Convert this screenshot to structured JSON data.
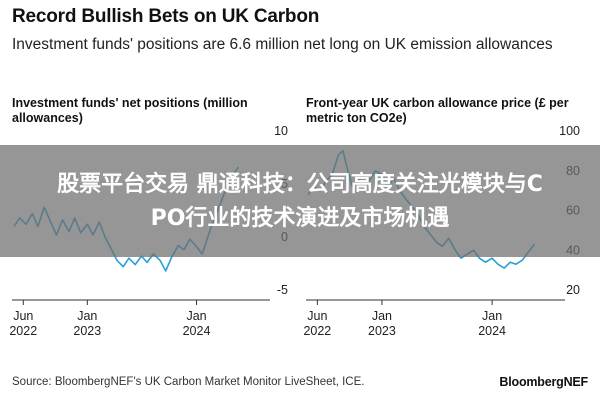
{
  "header": {
    "title": "Record Bullish Bets on UK Carbon",
    "subtitle": "Investment funds' positions are 6.6 million net long on UK emission allowances"
  },
  "footer": {
    "source": "Source: BloombergNEF's UK Carbon Market Monitor LiveSheet, ICE.",
    "brand": "BloombergNEF"
  },
  "overlay": {
    "line1": "股票平台交易 鼎通科技：公司高度关注光模块与C",
    "line2": "PO行业的技术演进及市场机遇"
  },
  "colors": {
    "line": "#2a9fd6",
    "baseline": "#333333",
    "overlay": "#6e6e6e"
  },
  "chart_data": [
    {
      "type": "line",
      "title": "Investment funds' net positions (million allowances)",
      "xlabel": "",
      "ylabel": "",
      "x_ticks": [
        {
          "label": [
            "Jun",
            "2022"
          ],
          "date": "2022-06"
        },
        {
          "label": [
            "Jan",
            "2023"
          ],
          "date": "2023-01"
        },
        {
          "label": [
            "Jan",
            "2024"
          ],
          "date": "2024-01"
        }
      ],
      "y_ticks": [
        10,
        5,
        0,
        -5
      ],
      "ylim": [
        -5,
        10
      ],
      "xlim": [
        "2022-05",
        "2024-06"
      ],
      "series": [
        {
          "values": [
            [
              "2022-05-01",
              1.0
            ],
            [
              "2022-05-20",
              1.8
            ],
            [
              "2022-06-10",
              1.2
            ],
            [
              "2022-07-01",
              2.2
            ],
            [
              "2022-07-20",
              1.0
            ],
            [
              "2022-08-10",
              2.8
            ],
            [
              "2022-08-30",
              1.5
            ],
            [
              "2022-09-20",
              0.2
            ],
            [
              "2022-10-10",
              1.6
            ],
            [
              "2022-11-01",
              0.5
            ],
            [
              "2022-11-20",
              1.8
            ],
            [
              "2022-12-10",
              0.4
            ],
            [
              "2023-01-01",
              1.2
            ],
            [
              "2023-01-20",
              0.2
            ],
            [
              "2023-02-10",
              1.4
            ],
            [
              "2023-03-01",
              0.0
            ],
            [
              "2023-03-20",
              -1.0
            ],
            [
              "2023-04-10",
              -2.2
            ],
            [
              "2023-05-01",
              -2.8
            ],
            [
              "2023-05-20",
              -2.0
            ],
            [
              "2023-06-10",
              -2.6
            ],
            [
              "2023-07-01",
              -1.8
            ],
            [
              "2023-07-20",
              -2.4
            ],
            [
              "2023-08-10",
              -1.6
            ],
            [
              "2023-09-01",
              -2.2
            ],
            [
              "2023-09-20",
              -3.2
            ],
            [
              "2023-10-10",
              -1.9
            ],
            [
              "2023-11-01",
              -0.8
            ],
            [
              "2023-11-20",
              -1.2
            ],
            [
              "2023-12-10",
              -0.2
            ],
            [
              "2024-01-01",
              -0.9
            ],
            [
              "2024-01-20",
              -1.6
            ],
            [
              "2024-02-10",
              0.2
            ],
            [
              "2024-03-01",
              1.8
            ],
            [
              "2024-03-20",
              3.1
            ],
            [
              "2024-04-10",
              4.6
            ],
            [
              "2024-05-01",
              5.8
            ],
            [
              "2024-05-20",
              6.6
            ]
          ]
        }
      ]
    },
    {
      "type": "line",
      "title": "Front-year UK carbon allowance price (£ per metric ton CO2e)",
      "xlabel": "",
      "ylabel": "",
      "x_ticks": [
        {
          "label": [
            "Jun",
            "2022"
          ],
          "date": "2022-06"
        },
        {
          "label": [
            "Jan",
            "2023"
          ],
          "date": "2023-01"
        },
        {
          "label": [
            "Jan",
            "2024"
          ],
          "date": "2024-01"
        }
      ],
      "y_ticks": [
        100,
        80,
        60,
        40,
        20
      ],
      "ylim": [
        20,
        100
      ],
      "xlim": [
        "2022-05",
        "2024-06"
      ],
      "series": [
        {
          "values": [
            [
              "2022-05-01",
              68
            ],
            [
              "2022-05-20",
              72
            ],
            [
              "2022-06-10",
              70
            ],
            [
              "2022-07-01",
              75
            ],
            [
              "2022-07-20",
              78
            ],
            [
              "2022-08-10",
              88
            ],
            [
              "2022-08-25",
              90
            ],
            [
              "2022-09-10",
              80
            ],
            [
              "2022-09-25",
              72
            ],
            [
              "2022-10-10",
              74
            ],
            [
              "2022-11-01",
              78
            ],
            [
              "2022-11-20",
              75
            ],
            [
              "2022-12-10",
              80
            ],
            [
              "2023-01-01",
              78
            ],
            [
              "2023-01-20",
              72
            ],
            [
              "2023-02-10",
              76
            ],
            [
              "2023-03-01",
              70
            ],
            [
              "2023-03-20",
              66
            ],
            [
              "2023-04-10",
              62
            ],
            [
              "2023-05-01",
              58
            ],
            [
              "2023-05-20",
              52
            ],
            [
              "2023-06-10",
              48
            ],
            [
              "2023-07-01",
              44
            ],
            [
              "2023-07-20",
              42
            ],
            [
              "2023-08-10",
              46
            ],
            [
              "2023-09-01",
              40
            ],
            [
              "2023-09-20",
              36
            ],
            [
              "2023-10-10",
              38
            ],
            [
              "2023-11-01",
              40
            ],
            [
              "2023-11-20",
              36
            ],
            [
              "2023-12-10",
              34
            ],
            [
              "2024-01-01",
              36
            ],
            [
              "2024-01-20",
              33
            ],
            [
              "2024-02-10",
              31
            ],
            [
              "2024-03-01",
              34
            ],
            [
              "2024-03-20",
              33
            ],
            [
              "2024-04-10",
              35
            ],
            [
              "2024-04-25",
              38
            ],
            [
              "2024-05-10",
              41
            ],
            [
              "2024-05-20",
              43
            ]
          ]
        }
      ]
    }
  ]
}
